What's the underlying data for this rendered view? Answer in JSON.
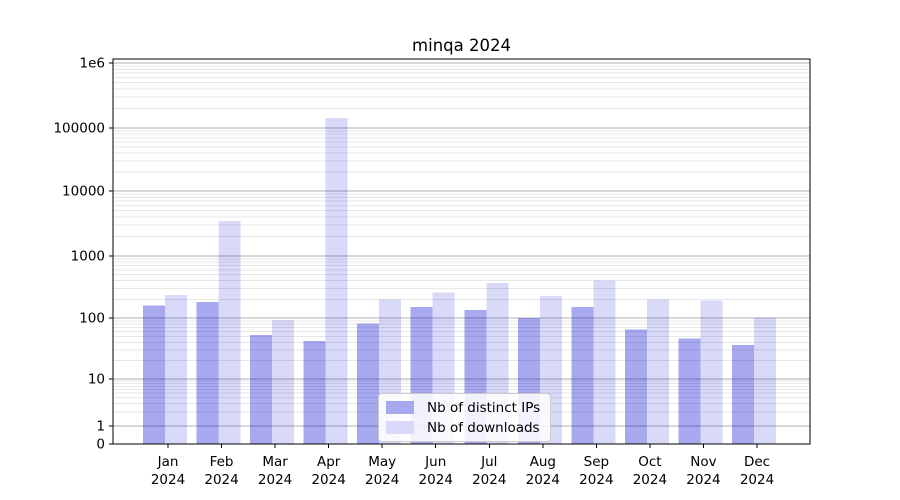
{
  "chart_data": {
    "type": "bar",
    "title": "minqa 2024",
    "categories": [
      "Jan",
      "Feb",
      "Mar",
      "Apr",
      "May",
      "Jun",
      "Jul",
      "Aug",
      "Sep",
      "Oct",
      "Nov",
      "Dec"
    ],
    "category_year": "2024",
    "series": [
      {
        "name": "Nb of distinct IPs",
        "fill": "rgba(0,0,205,0.34)",
        "color_hex": "#a8a8ef",
        "values": [
          160,
          180,
          53,
          42,
          82,
          150,
          135,
          100,
          150,
          65,
          46,
          36
        ]
      },
      {
        "name": "Nb of downloads",
        "fill": "rgba(0,0,205,0.15)",
        "color_hex": "#d9d9f9",
        "values": [
          235,
          3450,
          93,
          143000,
          200,
          260,
          370,
          225,
          400,
          200,
          190,
          102
        ]
      }
    ],
    "yscale": "symlog",
    "ylim": [
      0,
      1150000
    ],
    "yticks": [
      0,
      1,
      10,
      100,
      1000,
      10000,
      100000,
      1000000
    ],
    "ytick_labels": [
      "0",
      "1",
      "10",
      "100",
      "1000",
      "10000",
      "100000",
      "1e6"
    ],
    "grid": "both",
    "legend_position": "lower-center"
  },
  "colors": {
    "axis": "#000000",
    "major_grid": "#b0b0b0",
    "minor_grid": "#e7e7e7",
    "text": "#000000",
    "legend_border": "#cccccc"
  }
}
